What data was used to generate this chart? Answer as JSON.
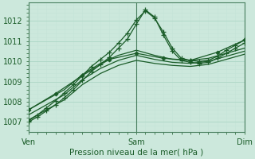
{
  "xlabel": "Pression niveau de la mer( hPa )",
  "bg_color": "#cce8dc",
  "grid_color_major": "#b0d8c8",
  "grid_color_minor": "#c4e4d8",
  "line_color": "#1a5c28",
  "spine_color": "#4a8060",
  "xlim": [
    0,
    48
  ],
  "ylim": [
    1006.5,
    1012.9
  ],
  "yticks": [
    1007,
    1008,
    1009,
    1010,
    1011,
    1012
  ],
  "xtick_positions": [
    0,
    24,
    48
  ],
  "xtick_labels": [
    "Ven",
    "Sam",
    "Dim"
  ],
  "series": [
    {
      "x": [
        0,
        2,
        4,
        6,
        8,
        10,
        12,
        14,
        16,
        18,
        20,
        22,
        24,
        26,
        28,
        30,
        32,
        34,
        36,
        38,
        40,
        42,
        44,
        46,
        48
      ],
      "y": [
        1007.05,
        1007.35,
        1007.7,
        1008.05,
        1008.45,
        1008.85,
        1009.3,
        1009.75,
        1010.1,
        1010.45,
        1010.9,
        1011.4,
        1012.05,
        1012.5,
        1012.15,
        1011.45,
        1010.65,
        1010.15,
        1010.05,
        1010.0,
        1010.05,
        1010.25,
        1010.55,
        1010.8,
        1011.05
      ],
      "marker": "+"
    },
    {
      "x": [
        0,
        2,
        4,
        6,
        8,
        10,
        12,
        14,
        16,
        18,
        20,
        22,
        24,
        26,
        28,
        30,
        32,
        34,
        36,
        38,
        40,
        42,
        44,
        46,
        48
      ],
      "y": [
        1007.0,
        1007.25,
        1007.55,
        1007.85,
        1008.2,
        1008.6,
        1009.05,
        1009.5,
        1009.85,
        1010.2,
        1010.65,
        1011.1,
        1011.85,
        1012.55,
        1012.2,
        1011.3,
        1010.5,
        1010.05,
        1009.95,
        1009.9,
        1009.95,
        1010.15,
        1010.4,
        1010.65,
        1010.9
      ],
      "marker": "+"
    },
    {
      "x": [
        0,
        6,
        12,
        18,
        24,
        30,
        36,
        42,
        48
      ],
      "y": [
        1007.6,
        1008.4,
        1009.3,
        1010.1,
        1010.4,
        1010.15,
        1010.05,
        1010.45,
        1011.05
      ],
      "marker": "D"
    },
    {
      "x": [
        0,
        4,
        8,
        12,
        16,
        20,
        24,
        28,
        32,
        36,
        40,
        44,
        48
      ],
      "y": [
        1007.6,
        1008.1,
        1008.6,
        1009.35,
        1009.9,
        1010.3,
        1010.55,
        1010.3,
        1010.1,
        1010.05,
        1010.15,
        1010.4,
        1010.65
      ],
      "marker": null
    },
    {
      "x": [
        0,
        4,
        8,
        12,
        16,
        20,
        24,
        28,
        32,
        36,
        40,
        44,
        48
      ],
      "y": [
        1007.35,
        1007.85,
        1008.35,
        1009.1,
        1009.65,
        1010.05,
        1010.3,
        1010.1,
        1009.95,
        1009.9,
        1010.0,
        1010.25,
        1010.5
      ],
      "marker": null
    },
    {
      "x": [
        0,
        4,
        8,
        12,
        16,
        20,
        24,
        28,
        32,
        36,
        40,
        44,
        48
      ],
      "y": [
        1007.1,
        1007.6,
        1008.1,
        1008.85,
        1009.4,
        1009.8,
        1010.05,
        1009.9,
        1009.8,
        1009.75,
        1009.85,
        1010.1,
        1010.35
      ],
      "marker": null
    }
  ]
}
